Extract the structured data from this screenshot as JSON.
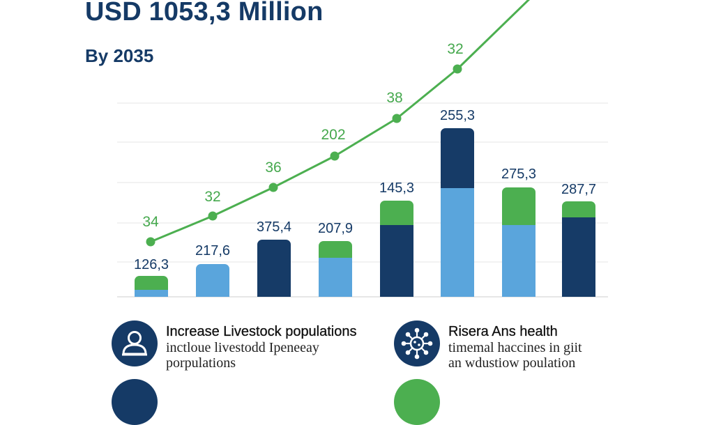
{
  "header": {
    "headline": "USD 1053,3 Million",
    "subheadline": "By 2035"
  },
  "chart_data": {
    "type": "bar",
    "series": [
      {
        "values": [
          "126,3",
          "217,6",
          "375,4",
          "207,9",
          "145,3",
          "255,3",
          "275,3",
          "287,7"
        ],
        "segments": [
          [
            "#5aa5dc",
            "#4caf50"
          ],
          [
            "#5aa5dc"
          ],
          [
            "#163b67"
          ],
          [
            "#5aa5dc",
            "#4caf50"
          ],
          [
            "#163b67",
            "#4caf50"
          ],
          [
            "#5aa5dc",
            "#163b67"
          ],
          [
            "#5aa5dc",
            "#4caf50"
          ],
          [
            "#163b67",
            "#4caf50"
          ]
        ]
      },
      {
        "type": "line",
        "values": [
          "34",
          "32",
          "36",
          "202",
          "38",
          "32"
        ],
        "color": "#4caf50"
      }
    ],
    "grid": true,
    "legend": "none"
  },
  "drivers": [
    {
      "title": "Increase Livestock populations",
      "desc_line1": "inctloue livestodd Ipeneeay",
      "desc_line2": "porpulations",
      "icon": "farmer-icon"
    },
    {
      "title": "Risera Ans health",
      "desc_line1": "timemal haccines in giit",
      "desc_line2": "an wdustiow poulation",
      "icon": "virus-icon"
    }
  ],
  "colors": {
    "navy": "#153a66",
    "light_blue": "#5aa5dc",
    "green": "#4caf50",
    "grid": "#e6e6e6"
  }
}
